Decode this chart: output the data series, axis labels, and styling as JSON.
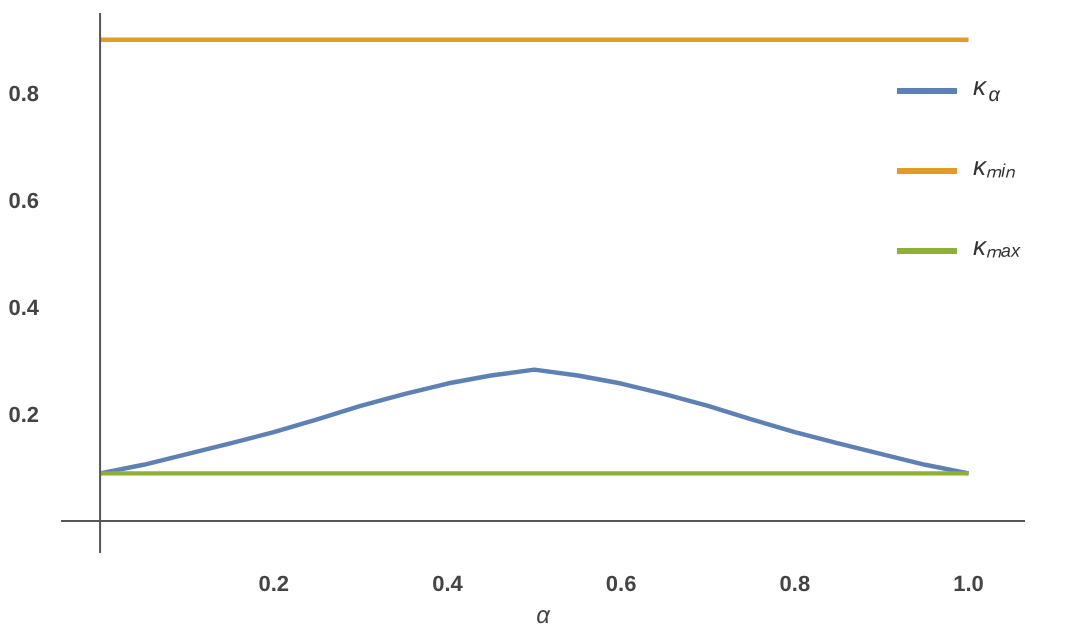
{
  "chart_data": {
    "type": "line",
    "xlabel": "α",
    "x": [
      0,
      0.05,
      0.1,
      0.15,
      0.2,
      0.25,
      0.3,
      0.35,
      0.4,
      0.45,
      0.5,
      0.55,
      0.6,
      0.65,
      0.7,
      0.75,
      0.8,
      0.85,
      0.9,
      0.95,
      1
    ],
    "series": [
      {
        "name": "κ$_{α}$",
        "color": "#5e81b5",
        "values": [
          0.089,
          0.105,
          0.125,
          0.145,
          0.166,
          0.19,
          0.215,
          0.237,
          0.257,
          0.272,
          0.283,
          0.272,
          0.257,
          0.237,
          0.215,
          0.19,
          0.166,
          0.145,
          0.125,
          0.105,
          0.089
        ]
      },
      {
        "name": "κₘᵢₙ",
        "color": "#e19c24",
        "values": [
          0.9,
          0.9,
          0.9,
          0.9,
          0.9,
          0.9,
          0.9,
          0.9,
          0.9,
          0.9,
          0.9,
          0.9,
          0.9,
          0.9,
          0.9,
          0.9,
          0.9,
          0.9,
          0.9,
          0.9,
          0.9
        ]
      },
      {
        "name": "κₘₐₓ",
        "color": "#8fb032",
        "values": [
          0.089,
          0.089,
          0.089,
          0.089,
          0.089,
          0.089,
          0.089,
          0.089,
          0.089,
          0.089,
          0.089,
          0.089,
          0.089,
          0.089,
          0.089,
          0.089,
          0.089,
          0.089,
          0.089,
          0.089,
          0.089
        ]
      }
    ],
    "xlim": [
      -0.045,
      1.065
    ],
    "ylim": [
      -0.06,
      0.95
    ],
    "xticks": [
      0.2,
      0.4,
      0.6,
      0.8,
      {
        "value": 1,
        "label": "1.0"
      }
    ],
    "yticks": [
      0.2,
      0.4,
      0.6,
      0.8
    ],
    "grid": false,
    "legend": "right",
    "marker": "none",
    "line_style": "solid"
  }
}
